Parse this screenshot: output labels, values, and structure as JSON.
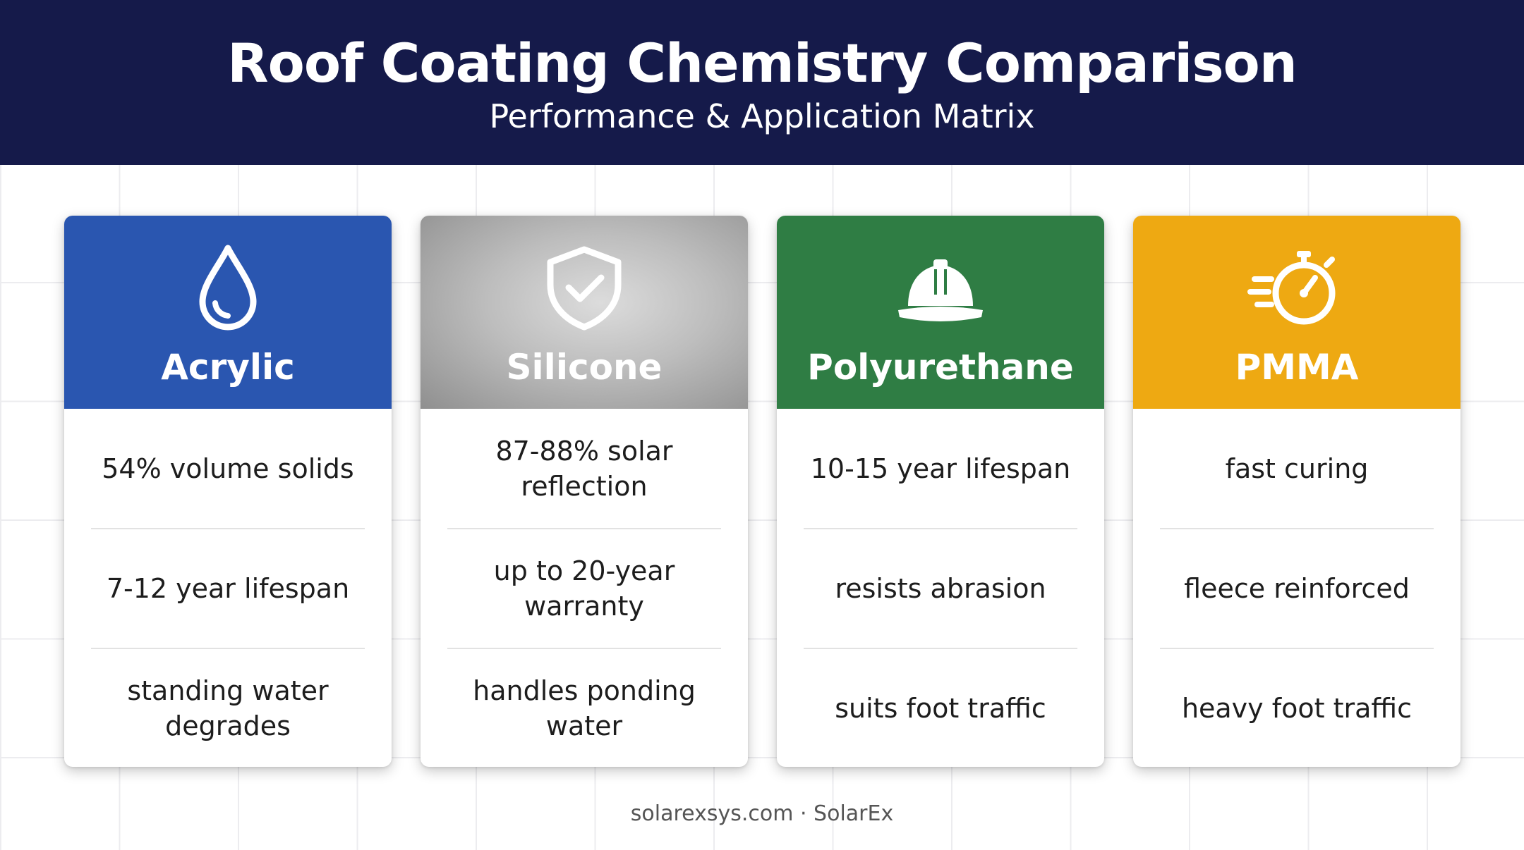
{
  "header": {
    "title": "Roof Coating Chemistry Comparison",
    "subtitle": "Performance & Application Matrix"
  },
  "cards": [
    {
      "name": "Acrylic",
      "icon": "water-drop-icon",
      "color": "#2a56b0",
      "features": [
        "54% volume solids",
        "7-12 year lifespan",
        "standing water degrades"
      ]
    },
    {
      "name": "Silicone",
      "icon": "shield-check-icon",
      "color": "#a8a8a8",
      "features": [
        "87-88% solar reflection",
        "up to 20-year warranty",
        "handles ponding water"
      ]
    },
    {
      "name": "Polyurethane",
      "icon": "hard-hat-icon",
      "color": "#2f7d44",
      "features": [
        "10-15 year lifespan",
        "resists abrasion",
        "suits foot traffic"
      ]
    },
    {
      "name": "PMMA",
      "icon": "stopwatch-icon",
      "color": "#eea912",
      "features": [
        "fast curing",
        "fleece reinforced",
        "heavy foot traffic"
      ]
    }
  ],
  "footer": {
    "text": "solarexsys.com · SolarEx"
  }
}
